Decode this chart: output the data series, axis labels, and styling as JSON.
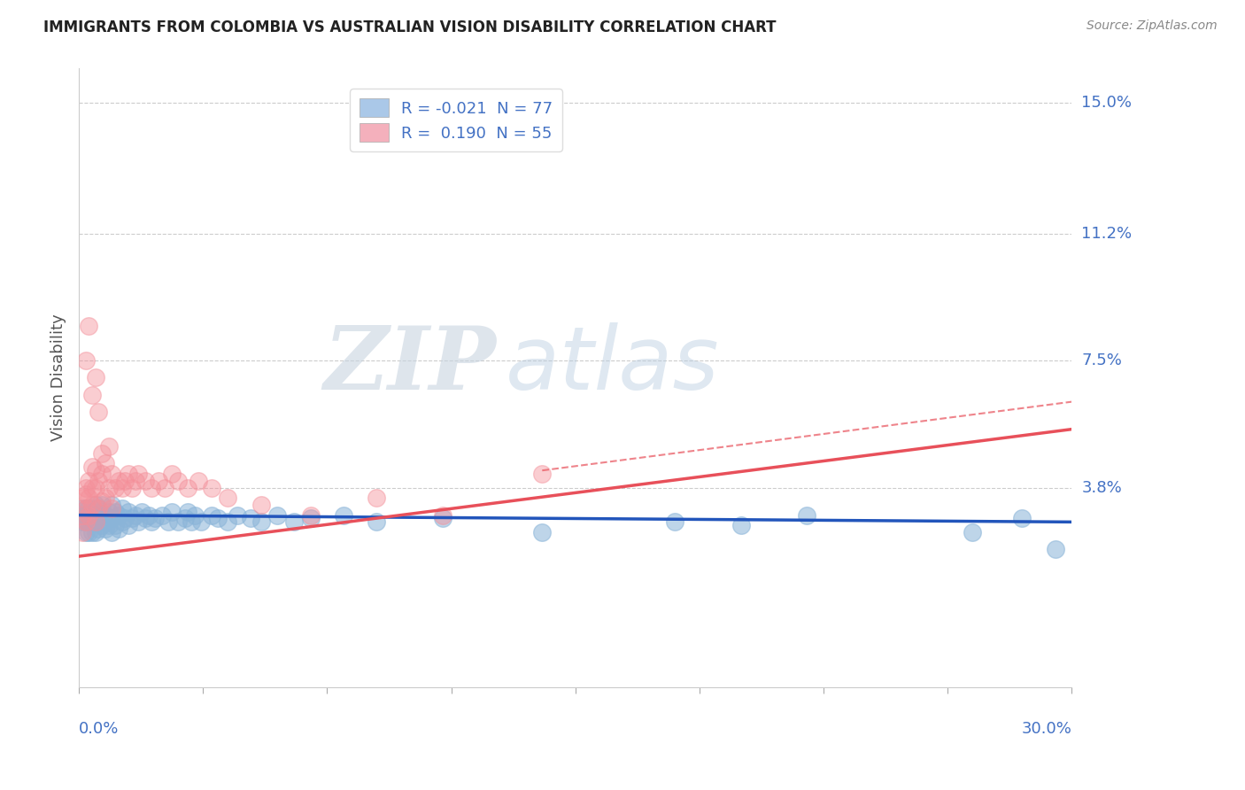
{
  "title": "IMMIGRANTS FROM COLOMBIA VS AUSTRALIAN VISION DISABILITY CORRELATION CHART",
  "source": "Source: ZipAtlas.com",
  "ylabel": "Vision Disability",
  "xlim": [
    0.0,
    0.3
  ],
  "ylim": [
    -0.02,
    0.16
  ],
  "ytick_vals": [
    0.038,
    0.075,
    0.112,
    0.15
  ],
  "ytick_labels": [
    "3.8%",
    "7.5%",
    "11.2%",
    "15.0%"
  ],
  "xtick_count": 9,
  "blue_color": "#8ab4d8",
  "pink_color": "#f4909a",
  "trend_blue_color": "#2255bb",
  "trend_pink_color": "#e8505a",
  "grid_color": "#cccccc",
  "axis_label_color": "#4472c4",
  "title_color": "#222222",
  "source_color": "#888888",
  "watermark_zip": "ZIP",
  "watermark_atlas": "atlas",
  "watermark_color_zip": "#c8d4e0",
  "watermark_color_atlas": "#b8cce0",
  "legend_label1": "R = -0.021  N = 77",
  "legend_label2": "R =  0.190  N = 55",
  "legend_color1": "#aac8e8",
  "legend_color2": "#f4b0bc",
  "blue_trend_x0": 0.0,
  "blue_trend_y0": 0.03,
  "blue_trend_x1": 0.3,
  "blue_trend_y1": 0.028,
  "pink_trend_x0": 0.0,
  "pink_trend_y0": 0.018,
  "pink_trend_x1": 0.3,
  "pink_trend_y1": 0.055,
  "pink_trend_dashed_x0": 0.14,
  "pink_trend_dashed_y0": 0.043,
  "pink_trend_dashed_x1": 0.3,
  "pink_trend_dashed_y1": 0.063,
  "blue_scatter_x": [
    0.001,
    0.001,
    0.001,
    0.002,
    0.002,
    0.002,
    0.002,
    0.003,
    0.003,
    0.003,
    0.003,
    0.004,
    0.004,
    0.004,
    0.004,
    0.005,
    0.005,
    0.005,
    0.005,
    0.006,
    0.006,
    0.006,
    0.007,
    0.007,
    0.007,
    0.008,
    0.008,
    0.009,
    0.009,
    0.01,
    0.01,
    0.01,
    0.011,
    0.011,
    0.012,
    0.012,
    0.013,
    0.013,
    0.014,
    0.015,
    0.015,
    0.016,
    0.017,
    0.018,
    0.019,
    0.02,
    0.021,
    0.022,
    0.023,
    0.025,
    0.027,
    0.028,
    0.03,
    0.032,
    0.033,
    0.034,
    0.035,
    0.037,
    0.04,
    0.042,
    0.045,
    0.048,
    0.052,
    0.055,
    0.06,
    0.065,
    0.07,
    0.08,
    0.09,
    0.11,
    0.14,
    0.18,
    0.2,
    0.22,
    0.27,
    0.285,
    0.295
  ],
  "blue_scatter_y": [
    0.028,
    0.03,
    0.032,
    0.025,
    0.028,
    0.03,
    0.032,
    0.025,
    0.028,
    0.03,
    0.032,
    0.025,
    0.028,
    0.03,
    0.032,
    0.025,
    0.028,
    0.03,
    0.033,
    0.026,
    0.029,
    0.032,
    0.027,
    0.03,
    0.033,
    0.026,
    0.03,
    0.027,
    0.031,
    0.025,
    0.029,
    0.033,
    0.027,
    0.031,
    0.026,
    0.03,
    0.028,
    0.032,
    0.029,
    0.027,
    0.031,
    0.029,
    0.03,
    0.028,
    0.031,
    0.029,
    0.03,
    0.028,
    0.029,
    0.03,
    0.028,
    0.031,
    0.028,
    0.029,
    0.031,
    0.028,
    0.03,
    0.028,
    0.03,
    0.029,
    0.028,
    0.03,
    0.029,
    0.028,
    0.03,
    0.028,
    0.029,
    0.03,
    0.028,
    0.029,
    0.025,
    0.028,
    0.027,
    0.03,
    0.025,
    0.029,
    0.02
  ],
  "pink_scatter_x": [
    0.001,
    0.001,
    0.001,
    0.002,
    0.002,
    0.002,
    0.002,
    0.003,
    0.003,
    0.003,
    0.004,
    0.004,
    0.004,
    0.005,
    0.005,
    0.005,
    0.006,
    0.006,
    0.007,
    0.007,
    0.007,
    0.008,
    0.008,
    0.009,
    0.009,
    0.01,
    0.01,
    0.011,
    0.012,
    0.013,
    0.014,
    0.015,
    0.016,
    0.017,
    0.018,
    0.02,
    0.022,
    0.024,
    0.026,
    0.028,
    0.03,
    0.033,
    0.036,
    0.04,
    0.045,
    0.055,
    0.07,
    0.09,
    0.11,
    0.14,
    0.002,
    0.003,
    0.004,
    0.005,
    0.006
  ],
  "pink_scatter_y": [
    0.025,
    0.03,
    0.035,
    0.028,
    0.032,
    0.036,
    0.038,
    0.03,
    0.035,
    0.04,
    0.033,
    0.038,
    0.044,
    0.028,
    0.038,
    0.043,
    0.032,
    0.04,
    0.034,
    0.042,
    0.048,
    0.035,
    0.045,
    0.038,
    0.05,
    0.032,
    0.042,
    0.038,
    0.04,
    0.038,
    0.04,
    0.042,
    0.038,
    0.04,
    0.042,
    0.04,
    0.038,
    0.04,
    0.038,
    0.042,
    0.04,
    0.038,
    0.04,
    0.038,
    0.035,
    0.033,
    0.03,
    0.035,
    0.03,
    0.042,
    0.075,
    0.085,
    0.065,
    0.07,
    0.06
  ]
}
